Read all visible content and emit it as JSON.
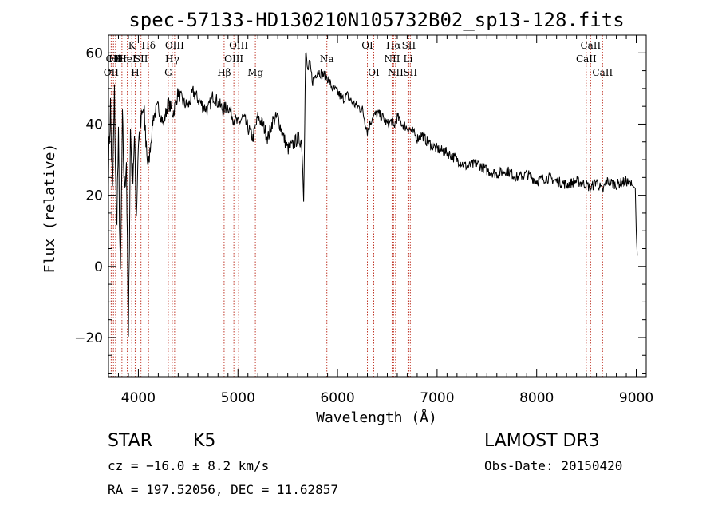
{
  "chart_data": {
    "type": "line",
    "title": "spec-57133-HD130210N105732B02_sp13-128.fits",
    "xlabel": "Wavelength (Å)",
    "ylabel": "Flux (relative)",
    "xlim": [
      3700,
      9100
    ],
    "ylim": [
      -31,
      65
    ],
    "xticks": [
      4000,
      5000,
      6000,
      7000,
      8000,
      9000
    ],
    "yticks": [
      -20,
      0,
      20,
      40,
      60
    ],
    "series": [
      {
        "name": "flux",
        "x": [
          3700,
          3720,
          3740,
          3760,
          3780,
          3800,
          3820,
          3840,
          3860,
          3880,
          3900,
          3920,
          3940,
          3960,
          3980,
          4000,
          4050,
          4100,
          4150,
          4200,
          4250,
          4300,
          4350,
          4400,
          4450,
          4500,
          4550,
          4600,
          4650,
          4700,
          4750,
          4800,
          4850,
          4900,
          4950,
          5000,
          5050,
          5100,
          5150,
          5200,
          5250,
          5300,
          5350,
          5400,
          5450,
          5500,
          5550,
          5600,
          5640,
          5660,
          5680,
          5700,
          5720,
          5750,
          5800,
          5850,
          5900,
          5950,
          6000,
          6050,
          6100,
          6150,
          6200,
          6250,
          6300,
          6350,
          6400,
          6450,
          6500,
          6550,
          6563,
          6600,
          6650,
          6700,
          6750,
          6800,
          6850,
          6900,
          6950,
          7000,
          7100,
          7200,
          7300,
          7400,
          7500,
          7600,
          7700,
          7800,
          7900,
          8000,
          8100,
          8200,
          8300,
          8400,
          8500,
          8542,
          8600,
          8662,
          8700,
          8800,
          8900,
          8950,
          8990,
          9000,
          9010
        ],
        "y": [
          28,
          45,
          20,
          48,
          10,
          35,
          -5,
          40,
          22,
          30,
          -22,
          38,
          25,
          35,
          15,
          35,
          44,
          28,
          42,
          45,
          40,
          46,
          43,
          49,
          46,
          45,
          49,
          47,
          45,
          44,
          48,
          46,
          44,
          45,
          42,
          40,
          42,
          39,
          36,
          42,
          40,
          36,
          41,
          42,
          37,
          33,
          34,
          36,
          35,
          20,
          60,
          55,
          57,
          52,
          55,
          54,
          53,
          50,
          49,
          47,
          48,
          46,
          45,
          44,
          38,
          42,
          43,
          42,
          40,
          41,
          39,
          42,
          40,
          39,
          38,
          36,
          37,
          35,
          34,
          33,
          32,
          30,
          28,
          29,
          27,
          26,
          27,
          25,
          26,
          24,
          25,
          24,
          23,
          24,
          23,
          22,
          24,
          21,
          24,
          23,
          24,
          23,
          22,
          10,
          3
        ]
      }
    ],
    "lines": [
      {
        "wl": 3727,
        "row": 2,
        "label": "OII"
      },
      {
        "wl": 3750,
        "row": 1,
        "label": "OII"
      },
      {
        "wl": 3771,
        "row": 1,
        "label": "Hθ"
      },
      {
        "wl": 3835,
        "row": 1,
        "label": "Hη"
      },
      {
        "wl": 3889,
        "row": 1,
        "label": "HeI"
      },
      {
        "wl": 3934,
        "row": 0,
        "label": "K"
      },
      {
        "wl": 3968,
        "row": 2,
        "label": "H"
      },
      {
        "wl": 4026,
        "row": 1,
        "label": "SII"
      },
      {
        "wl": 4102,
        "row": 0,
        "label": "Hδ"
      },
      {
        "wl": 4300,
        "row": 2,
        "label": "G"
      },
      {
        "wl": 4340,
        "row": 1,
        "label": "Hγ"
      },
      {
        "wl": 4364,
        "row": 0,
        "label": "OIII"
      },
      {
        "wl": 4861,
        "row": 2,
        "label": "Hβ"
      },
      {
        "wl": 4959,
        "row": 1,
        "label": "OIII"
      },
      {
        "wl": 5007,
        "row": 0,
        "label": "OIII"
      },
      {
        "wl": 5175,
        "row": 2,
        "label": "Mg"
      },
      {
        "wl": 5893,
        "row": 1,
        "label": "Na"
      },
      {
        "wl": 6300,
        "row": 0,
        "label": "OI"
      },
      {
        "wl": 6364,
        "row": 2,
        "label": "OI"
      },
      {
        "wl": 6548,
        "row": 1,
        "label": "NII"
      },
      {
        "wl": 6563,
        "row": 0,
        "label": "Hα"
      },
      {
        "wl": 6583,
        "row": 2,
        "label": "NII"
      },
      {
        "wl": 6708,
        "row": 1,
        "label": "Li"
      },
      {
        "wl": 6716,
        "row": 0,
        "label": "SII"
      },
      {
        "wl": 6731,
        "row": 2,
        "label": "SII"
      },
      {
        "wl": 8498,
        "row": 1,
        "label": "CaII"
      },
      {
        "wl": 8542,
        "row": 0,
        "label": "CaII"
      },
      {
        "wl": 8662,
        "row": 2,
        "label": "CaII"
      }
    ]
  },
  "info": {
    "class": "STAR",
    "subclass": "K5",
    "survey": "LAMOST DR3",
    "cz": "cz = −16.0 ± 8.2 km/s",
    "obs_date": "Obs-Date: 20150420",
    "radec": "RA = 197.52056, DEC =  11.62857"
  }
}
